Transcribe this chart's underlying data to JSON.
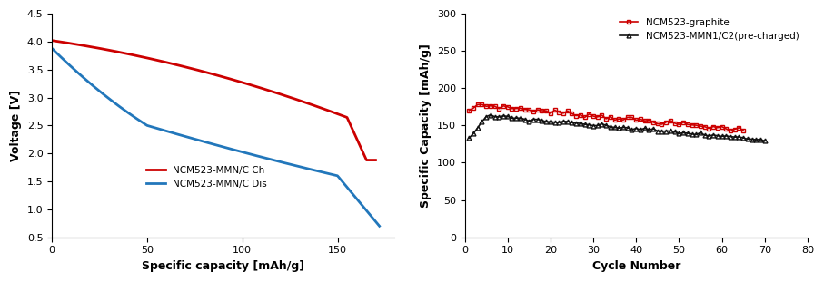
{
  "left": {
    "xlabel": "Specific capacity [mAh/g]",
    "ylabel": "Voltage [V]",
    "xlim": [
      0,
      180
    ],
    "ylim": [
      0.5,
      4.5
    ],
    "xticks": [
      0,
      50,
      100,
      150
    ],
    "yticks": [
      0.5,
      1.0,
      1.5,
      2.0,
      2.5,
      3.0,
      3.5,
      4.0,
      4.5
    ],
    "charge_color": "#cc0000",
    "discharge_color": "#2277bb",
    "legend_charge": "NCM523-MMN/C Ch",
    "legend_discharge": "NCM523-MMN/C Dis"
  },
  "right": {
    "xlabel": "Cycle Number",
    "ylabel": "Specific Capacity [mAh/g]",
    "xlim": [
      0,
      80
    ],
    "ylim": [
      0,
      300
    ],
    "xticks": [
      0,
      10,
      20,
      30,
      40,
      50,
      60,
      70,
      80
    ],
    "yticks": [
      0,
      50,
      100,
      150,
      200,
      250,
      300
    ],
    "graphite_color": "#cc0000",
    "mmn_color": "#111111",
    "legend_graphite": "NCM523-graphite",
    "legend_mmn": "NCM523-MMN1/C2(pre-charged)"
  }
}
